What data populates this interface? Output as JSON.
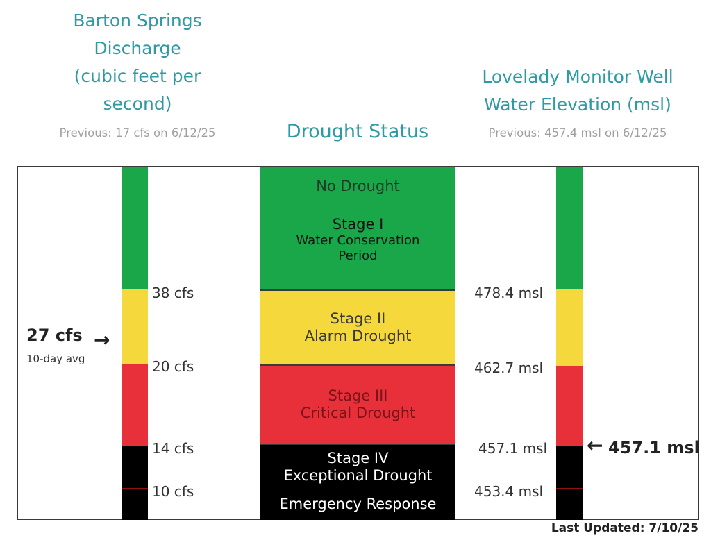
{
  "left_header": {
    "title_lines": [
      "Barton Springs",
      "Discharge",
      "(cubic feet per",
      "second)"
    ],
    "previous": "Previous: 17 cfs on 6/12/25"
  },
  "center_header": {
    "title": "Drought Status"
  },
  "right_header": {
    "title_lines": [
      "Lovelady Monitor Well",
      "Water Elevation (msl)"
    ],
    "previous": "Previous: 457.4 msl on 6/12/25"
  },
  "left_scale": {
    "unit": "cfs",
    "ticks": [
      "38 cfs",
      "20 cfs",
      "14 cfs",
      "10 cfs"
    ]
  },
  "right_scale": {
    "unit": "msl",
    "ticks": [
      "478.4 msl",
      "462.7 msl",
      "457.1 msl",
      "453.4 msl"
    ]
  },
  "current_discharge": {
    "value_label": "27 cfs",
    "sub_label": "10-day avg",
    "value": 27,
    "arrow": "→"
  },
  "current_elevation": {
    "value_label": "457.1 msl",
    "value": 457.1,
    "arrow": "←"
  },
  "stages": [
    {
      "id": "no-drought",
      "color": "#19a74a",
      "text_color": "#1f3b27",
      "lines": [
        "No Drought"
      ]
    },
    {
      "id": "stage-1",
      "color": "#19a74a",
      "text_color": "#111111",
      "lines": [
        "Stage I",
        "Water Conservation",
        "Period"
      ]
    },
    {
      "id": "stage-2",
      "color": "#f5d83b",
      "text_color": "#3a3a3a",
      "lines": [
        "Stage II",
        "Alarm Drought"
      ]
    },
    {
      "id": "stage-3",
      "color": "#e8303a",
      "text_color": "#7a1418",
      "lines": [
        "Stage III",
        "Critical Drought"
      ]
    },
    {
      "id": "stage-4",
      "color": "#000000",
      "text_color": "#ffffff",
      "lines": [
        "Stage IV",
        "Exceptional Drought"
      ]
    },
    {
      "id": "emergency",
      "color": "#000000",
      "text_color": "#ffffff",
      "lines": [
        "Emergency Response"
      ]
    }
  ],
  "colors": {
    "green": "#19a74a",
    "yellow": "#f5d83b",
    "red": "#e8303a",
    "black": "#000000",
    "emergency_line": "#8f0f12",
    "title_teal": "#2e9aa6"
  },
  "footer": {
    "last_updated": "Last Updated: 7/10/25"
  }
}
